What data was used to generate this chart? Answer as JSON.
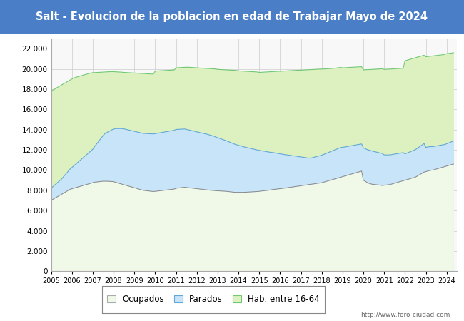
{
  "title": "Salt - Evolucion de la poblacion en edad de Trabajar Mayo de 2024",
  "title_bg": "#4a7ec7",
  "title_color": "white",
  "xlim_start": 2005,
  "xlim_end": 2024.5,
  "ylim": [
    0,
    23000
  ],
  "yticks": [
    0,
    2000,
    4000,
    6000,
    8000,
    10000,
    12000,
    14000,
    16000,
    18000,
    20000,
    22000
  ],
  "watermark": "http://www.foro-ciudad.com",
  "legend_labels": [
    "Ocupados",
    "Parados",
    "Hab. entre 16-64"
  ],
  "colors": {
    "hab_fill": "#ddf0c0",
    "hab_line": "#70c870",
    "parados_fill": "#c8e4f8",
    "parados_line": "#60a8d8",
    "ocupados_fill": "#f0f8e8",
    "ocupados_line": "#888888",
    "grid": "#cccccc",
    "bg": "#f8f8f8"
  },
  "months_per_year": 12,
  "years": [
    2005,
    2006,
    2007,
    2008,
    2009,
    2010,
    2011,
    2012,
    2013,
    2014,
    2015,
    2016,
    2017,
    2018,
    2019,
    2020,
    2021,
    2022,
    2023,
    2024
  ],
  "hab_16_64": [
    17800,
    17900,
    18000,
    18100,
    18200,
    18300,
    18400,
    18500,
    18600,
    18700,
    18800,
    18900,
    19000,
    19100,
    19150,
    19200,
    19250,
    19300,
    19350,
    19400,
    19450,
    19500,
    19550,
    19600,
    19620,
    19630,
    19640,
    19650,
    19660,
    19670,
    19680,
    19690,
    19700,
    19710,
    19720,
    19730,
    19720,
    19710,
    19700,
    19690,
    19680,
    19670,
    19650,
    19640,
    19630,
    19620,
    19610,
    19600,
    19590,
    19580,
    19570,
    19560,
    19550,
    19540,
    19530,
    19520,
    19510,
    19500,
    19490,
    19480,
    19780,
    19790,
    19800,
    19810,
    19820,
    19830,
    19840,
    19850,
    19860,
    19870,
    19880,
    19890,
    20100,
    20110,
    20120,
    20130,
    20140,
    20150,
    20160,
    20160,
    20150,
    20140,
    20130,
    20120,
    20100,
    20090,
    20080,
    20070,
    20060,
    20050,
    20040,
    20030,
    20020,
    20010,
    20000,
    19990,
    19950,
    19940,
    19930,
    19920,
    19910,
    19900,
    19890,
    19880,
    19870,
    19860,
    19850,
    19840,
    19800,
    19790,
    19780,
    19770,
    19760,
    19750,
    19740,
    19730,
    19720,
    19710,
    19700,
    19690,
    19650,
    19660,
    19670,
    19680,
    19690,
    19700,
    19710,
    19720,
    19730,
    19740,
    19750,
    19760,
    19760,
    19770,
    19780,
    19790,
    19800,
    19810,
    19820,
    19830,
    19840,
    19850,
    19860,
    19870,
    19870,
    19880,
    19890,
    19900,
    19910,
    19920,
    19930,
    19940,
    19950,
    19960,
    19970,
    19980,
    19980,
    19990,
    20000,
    20010,
    20020,
    20030,
    20040,
    20060,
    20080,
    20100,
    20120,
    20140,
    20100,
    20110,
    20120,
    20130,
    20140,
    20150,
    20160,
    20170,
    20180,
    20190,
    20200,
    20210,
    19900,
    19910,
    19920,
    19930,
    19940,
    19950,
    19960,
    19970,
    19980,
    19990,
    20000,
    20010,
    19950,
    19960,
    19970,
    19980,
    19990,
    20000,
    20010,
    20020,
    20030,
    20040,
    20050,
    20060,
    20800,
    20850,
    20900,
    20950,
    21000,
    21050,
    21100,
    21150,
    21200,
    21250,
    21300,
    21350,
    21200,
    21220,
    21240,
    21260,
    21280,
    21300,
    21320,
    21340,
    21360,
    21380,
    21400,
    21450,
    21500,
    21520,
    21540,
    21560,
    21600
  ],
  "parados": [
    1200,
    1250,
    1300,
    1350,
    1400,
    1450,
    1500,
    1600,
    1700,
    1800,
    1900,
    2000,
    2100,
    2200,
    2300,
    2400,
    2500,
    2600,
    2700,
    2800,
    2900,
    3000,
    3100,
    3200,
    3300,
    3500,
    3700,
    3900,
    4100,
    4300,
    4500,
    4700,
    4800,
    4900,
    5000,
    5100,
    5200,
    5300,
    5350,
    5400,
    5450,
    5500,
    5520,
    5530,
    5540,
    5550,
    5560,
    5570,
    5580,
    5590,
    5600,
    5610,
    5620,
    5630,
    5640,
    5650,
    5660,
    5670,
    5680,
    5690,
    5700,
    5710,
    5720,
    5730,
    5740,
    5750,
    5760,
    5770,
    5780,
    5790,
    5800,
    5810,
    5810,
    5800,
    5790,
    5780,
    5770,
    5760,
    5740,
    5720,
    5700,
    5680,
    5660,
    5640,
    5620,
    5600,
    5580,
    5560,
    5540,
    5520,
    5500,
    5470,
    5440,
    5400,
    5360,
    5300,
    5250,
    5200,
    5150,
    5100,
    5050,
    5000,
    4950,
    4900,
    4850,
    4800,
    4750,
    4700,
    4650,
    4600,
    4550,
    4500,
    4450,
    4400,
    4350,
    4300,
    4250,
    4200,
    4150,
    4100,
    4050,
    4000,
    3950,
    3900,
    3850,
    3800,
    3750,
    3700,
    3650,
    3600,
    3550,
    3500,
    3450,
    3400,
    3350,
    3300,
    3250,
    3200,
    3150,
    3100,
    3050,
    3000,
    2950,
    2900,
    2850,
    2800,
    2750,
    2700,
    2650,
    2600,
    2600,
    2620,
    2640,
    2660,
    2680,
    2700,
    2720,
    2740,
    2760,
    2780,
    2800,
    2820,
    2840,
    2860,
    2880,
    2900,
    2920,
    2940,
    2900,
    2880,
    2860,
    2840,
    2820,
    2800,
    2780,
    2760,
    2740,
    2720,
    2700,
    2680,
    3200,
    3220,
    3250,
    3280,
    3300,
    3280,
    3260,
    3240,
    3220,
    3200,
    3180,
    3160,
    3000,
    2980,
    2960,
    2940,
    2920,
    2900,
    2880,
    2860,
    2840,
    2820,
    2800,
    2780,
    2600,
    2620,
    2640,
    2660,
    2680,
    2700,
    2720,
    2740,
    2760,
    2780,
    2800,
    2820,
    2400,
    2380,
    2360,
    2340,
    2320,
    2300,
    2280,
    2260,
    2240,
    2220,
    2200,
    2180,
    2200,
    2220,
    2240,
    2260,
    2280
  ],
  "ocupados": [
    7000,
    7100,
    7200,
    7300,
    7400,
    7500,
    7600,
    7700,
    7800,
    7900,
    8000,
    8100,
    8150,
    8200,
    8250,
    8300,
    8350,
    8400,
    8450,
    8500,
    8550,
    8600,
    8650,
    8700,
    8750,
    8800,
    8820,
    8840,
    8860,
    8880,
    8900,
    8900,
    8900,
    8890,
    8880,
    8870,
    8850,
    8800,
    8750,
    8700,
    8650,
    8600,
    8550,
    8500,
    8450,
    8400,
    8350,
    8300,
    8250,
    8200,
    8150,
    8100,
    8050,
    8000,
    7980,
    7960,
    7940,
    7920,
    7900,
    7880,
    7900,
    7920,
    7940,
    7960,
    7980,
    8000,
    8020,
    8040,
    8060,
    8080,
    8100,
    8120,
    8200,
    8220,
    8240,
    8260,
    8280,
    8300,
    8280,
    8260,
    8240,
    8220,
    8200,
    8180,
    8160,
    8140,
    8120,
    8100,
    8080,
    8060,
    8040,
    8020,
    8000,
    7990,
    7980,
    7960,
    7950,
    7940,
    7930,
    7920,
    7910,
    7900,
    7880,
    7860,
    7840,
    7820,
    7800,
    7800,
    7800,
    7800,
    7800,
    7800,
    7810,
    7820,
    7830,
    7840,
    7850,
    7860,
    7870,
    7880,
    7900,
    7920,
    7940,
    7960,
    7980,
    8000,
    8020,
    8050,
    8080,
    8100,
    8120,
    8140,
    8160,
    8180,
    8200,
    8220,
    8250,
    8280,
    8300,
    8320,
    8350,
    8380,
    8400,
    8420,
    8450,
    8480,
    8500,
    8520,
    8550,
    8580,
    8600,
    8620,
    8650,
    8680,
    8700,
    8720,
    8750,
    8800,
    8850,
    8900,
    8950,
    9000,
    9050,
    9100,
    9150,
    9200,
    9250,
    9300,
    9350,
    9400,
    9450,
    9500,
    9550,
    9600,
    9650,
    9700,
    9750,
    9800,
    9850,
    9900,
    9000,
    8900,
    8800,
    8700,
    8650,
    8600,
    8580,
    8560,
    8540,
    8520,
    8500,
    8480,
    8500,
    8520,
    8540,
    8560,
    8600,
    8650,
    8700,
    8750,
    8800,
    8850,
    8900,
    8950,
    9000,
    9050,
    9100,
    9150,
    9200,
    9250,
    9300,
    9400,
    9500,
    9600,
    9700,
    9800,
    9850,
    9900,
    9950,
    9980,
    10000,
    10050,
    10100,
    10150,
    10200,
    10250,
    10300,
    10350,
    10400,
    10450,
    10500,
    10550,
    10600
  ]
}
